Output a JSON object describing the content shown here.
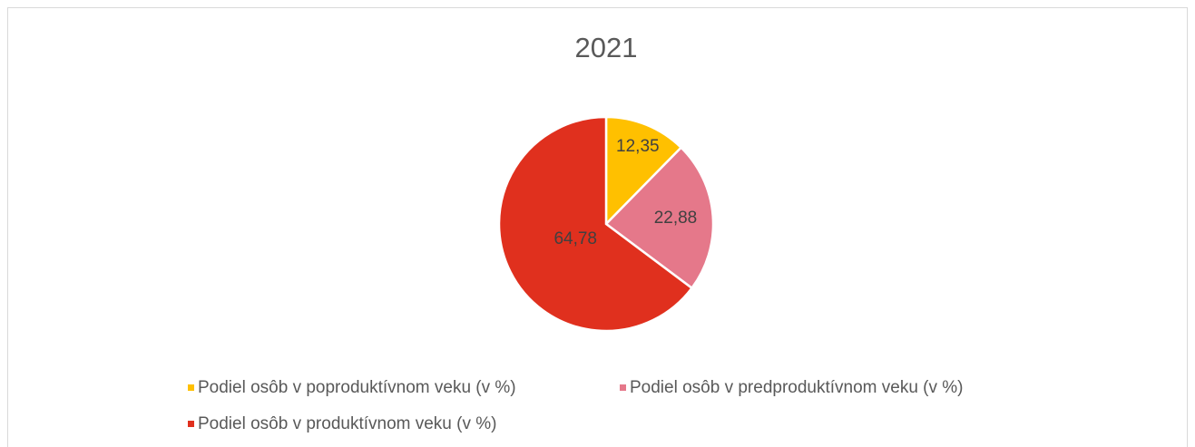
{
  "chart_data": {
    "type": "pie",
    "title": "2021",
    "categories": [
      "Podiel osôb v poproduktívnom veku (v %)",
      "Podiel osôb v predproduktívnom veku (v %)",
      "Podiel osôb v produktívnom veku (v %)"
    ],
    "values": [
      12.35,
      22.88,
      64.78
    ],
    "value_labels": [
      "12,35",
      "22,88",
      "64,78"
    ],
    "colors": [
      "#FFC000",
      "#E5788A",
      "#E0301E"
    ],
    "legend": "bottom"
  }
}
